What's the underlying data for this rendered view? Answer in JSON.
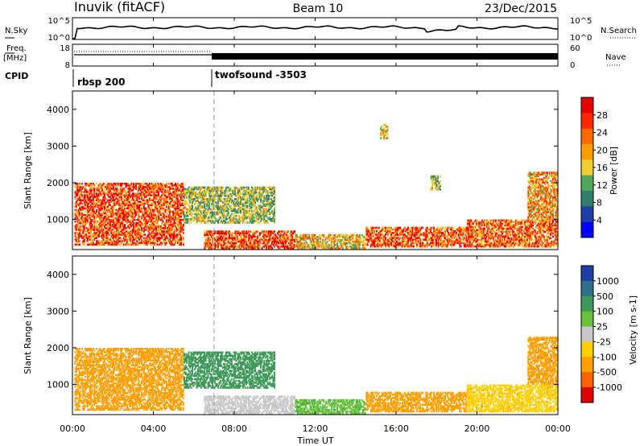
{
  "header": {
    "station": "Inuvik (fitACF)",
    "beam": "Beam 10",
    "date": "23/Dec/2015"
  },
  "top_panels": {
    "nsky_label": "N.Sky",
    "nsky_ticks": [
      "10^5",
      "10^0"
    ],
    "nsearch_label": "N.Search",
    "nsearch_ticks": [
      "10^5",
      "10^0"
    ],
    "freq_label_1": "Freq.",
    "freq_label_2": "[MHz]",
    "freq_ticks": [
      "18",
      "8"
    ],
    "nave_label": "Nave",
    "nave_ticks": [
      "60",
      "0"
    ],
    "cpid_label": "CPID",
    "cpid_segments": [
      {
        "name": "rbsp 200",
        "start_hour": 0
      },
      {
        "name": "twofsound -3503",
        "start_hour": 7
      }
    ]
  },
  "x_axis": {
    "label": "Time UT",
    "ticks": [
      "00:00",
      "04:00",
      "08:00",
      "12:00",
      "16:00",
      "20:00",
      "00:00"
    ],
    "range_hours": [
      0,
      24
    ]
  },
  "colors": {
    "power_scale": [
      "#0000ff",
      "#1f3fa6",
      "#2e7f6e",
      "#4fa75a",
      "#f0cc33",
      "#ff9c00",
      "#ff6a00",
      "#ff2800",
      "#e60000"
    ],
    "velocity_scale": [
      "#1f3fa6",
      "#2e6f8a",
      "#3f9a5a",
      "#66c23b",
      "#c8c8c8",
      "#ffd000",
      "#ffa000",
      "#ff6000",
      "#e00000"
    ]
  },
  "chart_data": [
    {
      "type": "heatmap",
      "name": "power",
      "ylabel": "Slant Range [km]",
      "yticks": [
        "1000",
        "2000",
        "3000",
        "4000"
      ],
      "ylim": [
        180,
        4500
      ],
      "xlim": [
        0,
        24
      ],
      "colorbar_label": "Power [dB]",
      "colorbar_ticks": [
        "4",
        "8",
        "12",
        "16",
        "20",
        "24",
        "28"
      ],
      "colorbar_range": [
        0,
        32
      ],
      "regions": [
        {
          "t": [
            0.1,
            5.5
          ],
          "r": [
            300,
            2000
          ],
          "v": 26
        },
        {
          "t": [
            5.5,
            10.0
          ],
          "r": [
            900,
            1900
          ],
          "v": 14
        },
        {
          "t": [
            6.5,
            11.0
          ],
          "r": [
            200,
            700
          ],
          "v": 27
        },
        {
          "t": [
            11.0,
            14.5
          ],
          "r": [
            200,
            600
          ],
          "v": 18
        },
        {
          "t": [
            14.5,
            19.5
          ],
          "r": [
            250,
            800
          ],
          "v": 25
        },
        {
          "t": [
            19.5,
            24.0
          ],
          "r": [
            250,
            1000
          ],
          "v": 24
        },
        {
          "t": [
            22.5,
            24.0
          ],
          "r": [
            1000,
            2300
          ],
          "v": 20
        },
        {
          "t": [
            15.2,
            15.6
          ],
          "r": [
            3200,
            3600
          ],
          "v": 18
        },
        {
          "t": [
            17.7,
            18.2
          ],
          "r": [
            1800,
            2200
          ],
          "v": 14
        }
      ]
    },
    {
      "type": "heatmap",
      "name": "velocity",
      "ylabel": "Slant Range [km]",
      "yticks": [
        "1000",
        "2000",
        "3000",
        "4000"
      ],
      "ylim": [
        180,
        4500
      ],
      "xlim": [
        0,
        24
      ],
      "colorbar_label": "Velocity [m s-1]",
      "colorbar_ticks": [
        "1000",
        "500",
        "100",
        "25",
        "-25",
        "-100",
        "-500",
        "-1000"
      ],
      "regions": [
        {
          "t": [
            0.1,
            5.5
          ],
          "r": [
            300,
            2000
          ],
          "v": -200
        },
        {
          "t": [
            5.5,
            10.0
          ],
          "r": [
            900,
            1900
          ],
          "v": 150
        },
        {
          "t": [
            6.5,
            11.0
          ],
          "r": [
            200,
            700
          ],
          "v": 0
        },
        {
          "t": [
            11.0,
            14.5
          ],
          "r": [
            200,
            600
          ],
          "v": 80
        },
        {
          "t": [
            14.5,
            19.5
          ],
          "r": [
            250,
            800
          ],
          "v": -150
        },
        {
          "t": [
            19.5,
            24.0
          ],
          "r": [
            250,
            1000
          ],
          "v": -80
        },
        {
          "t": [
            22.5,
            24.0
          ],
          "r": [
            1000,
            2300
          ],
          "v": -400
        }
      ]
    }
  ]
}
